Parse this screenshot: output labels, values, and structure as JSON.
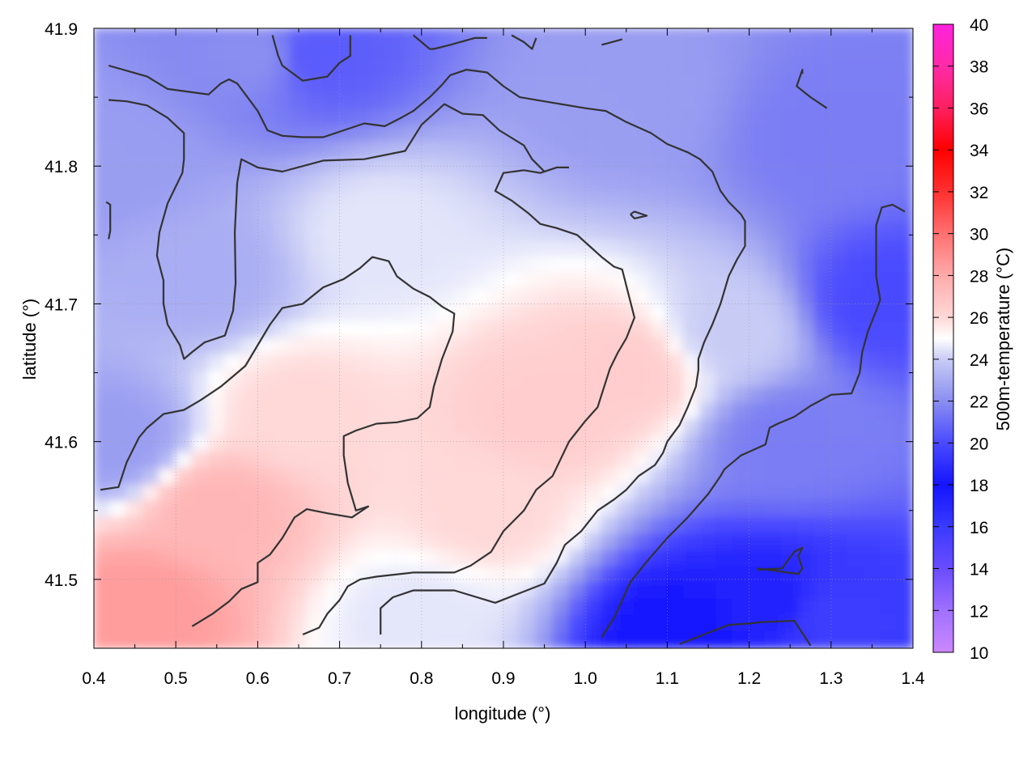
{
  "chart_data": {
    "type": "heatmap",
    "xlabel": "longitude (°)",
    "ylabel": "latitude (°)",
    "colorbar_label": "500m-temperature (°C)",
    "xlim": [
      0.4,
      1.4
    ],
    "ylim": [
      41.45,
      41.9
    ],
    "x_ticks": [
      "0.4",
      "0.5",
      "0.6",
      "0.7",
      "0.8",
      "0.9",
      "1.0",
      "1.1",
      "1.2",
      "1.3",
      "1.4"
    ],
    "y_ticks": [
      "41.5",
      "41.6",
      "41.7",
      "41.8",
      "41.9"
    ],
    "colorbar_range": [
      10,
      40
    ],
    "colorbar_ticks": [
      "10",
      "12",
      "14",
      "16",
      "18",
      "20",
      "22",
      "24",
      "26",
      "28",
      "30",
      "32",
      "34",
      "36",
      "38",
      "40"
    ],
    "colormap": [
      {
        "value": 10,
        "color": "#cc88ff"
      },
      {
        "value": 12,
        "color": "#a070ff"
      },
      {
        "value": 14,
        "color": "#6a4cff"
      },
      {
        "value": 16,
        "color": "#3a3aff"
      },
      {
        "value": 18,
        "color": "#1414ff"
      },
      {
        "value": 20,
        "color": "#4a4aff"
      },
      {
        "value": 22,
        "color": "#8a8ef0"
      },
      {
        "value": 24,
        "color": "#c8ccf5"
      },
      {
        "value": 25,
        "color": "#ffffff"
      },
      {
        "value": 26,
        "color": "#ffd8d8"
      },
      {
        "value": 28,
        "color": "#ffaaaa"
      },
      {
        "value": 30,
        "color": "#ff7070"
      },
      {
        "value": 32,
        "color": "#ff3030"
      },
      {
        "value": 34,
        "color": "#ff0000"
      },
      {
        "value": 36,
        "color": "#ff2060"
      },
      {
        "value": 38,
        "color": "#ff2aa8"
      },
      {
        "value": 40,
        "color": "#ff22dd"
      }
    ],
    "grid": true,
    "field_samples": [
      {
        "lon": 0.46,
        "lat": 41.48,
        "temp": 28.5
      },
      {
        "lon": 0.55,
        "lat": 41.55,
        "temp": 27.5
      },
      {
        "lon": 0.65,
        "lat": 41.62,
        "temp": 26.0
      },
      {
        "lon": 0.95,
        "lat": 41.62,
        "temp": 26.5
      },
      {
        "lon": 1.05,
        "lat": 41.65,
        "temp": 26.5
      },
      {
        "lon": 0.88,
        "lat": 41.55,
        "temp": 26.0
      },
      {
        "lon": 0.75,
        "lat": 41.75,
        "temp": 24.5
      },
      {
        "lon": 0.42,
        "lat": 41.8,
        "temp": 22.5
      },
      {
        "lon": 0.43,
        "lat": 41.6,
        "temp": 22.5
      },
      {
        "lon": 0.6,
        "lat": 41.88,
        "temp": 22.0
      },
      {
        "lon": 0.67,
        "lat": 41.88,
        "temp": 20.5
      },
      {
        "lon": 1.05,
        "lat": 41.85,
        "temp": 22.5
      },
      {
        "lon": 1.3,
        "lat": 41.82,
        "temp": 21.5
      },
      {
        "lon": 1.36,
        "lat": 41.7,
        "temp": 20.0
      },
      {
        "lon": 1.25,
        "lat": 41.6,
        "temp": 21.5
      },
      {
        "lon": 1.22,
        "lat": 41.48,
        "temp": 18.5
      },
      {
        "lon": 1.12,
        "lat": 41.46,
        "temp": 18.0
      },
      {
        "lon": 1.3,
        "lat": 41.47,
        "temp": 19.5
      },
      {
        "lon": 1.18,
        "lat": 41.68,
        "temp": 24.0
      },
      {
        "lon": 0.53,
        "lat": 41.72,
        "temp": 23.0
      },
      {
        "lon": 0.8,
        "lat": 41.47,
        "temp": 24.5
      }
    ],
    "contours": [
      [
        [
          0.418,
          41.873
        ],
        [
          0.465,
          41.865
        ],
        [
          0.49,
          41.856
        ],
        [
          0.54,
          41.852
        ],
        [
          0.555,
          41.86
        ],
        [
          0.565,
          41.863
        ],
        [
          0.575,
          41.86
        ],
        [
          0.6,
          41.84
        ],
        [
          0.612,
          41.826
        ],
        [
          0.63,
          41.822
        ],
        [
          0.655,
          41.821
        ],
        [
          0.68,
          41.821
        ],
        [
          0.705,
          41.826
        ],
        [
          0.73,
          41.831
        ],
        [
          0.755,
          41.829
        ],
        [
          0.775,
          41.835
        ],
        [
          0.79,
          41.84
        ],
        [
          0.81,
          41.85
        ],
        [
          0.825,
          41.859
        ],
        [
          0.835,
          41.866
        ],
        [
          0.855,
          41.87
        ],
        [
          0.88,
          41.868
        ],
        [
          0.9,
          41.858
        ],
        [
          0.92,
          41.85
        ],
        [
          0.96,
          41.846
        ],
        [
          1.0,
          41.842
        ],
        [
          1.025,
          41.84
        ],
        [
          1.05,
          41.832
        ],
        [
          1.08,
          41.824
        ],
        [
          1.1,
          41.816
        ],
        [
          1.125,
          41.81
        ],
        [
          1.14,
          41.805
        ],
        [
          1.155,
          41.796
        ],
        [
          1.165,
          41.782
        ],
        [
          1.175,
          41.774
        ],
        [
          1.19,
          41.765
        ],
        [
          1.195,
          41.76
        ],
        [
          1.195,
          41.742
        ],
        [
          1.185,
          41.732
        ],
        [
          1.175,
          41.72
        ],
        [
          1.165,
          41.7
        ],
        [
          1.155,
          41.685
        ],
        [
          1.145,
          41.672
        ],
        [
          1.138,
          41.66
        ],
        [
          1.138,
          41.652
        ],
        [
          1.135,
          41.64
        ],
        [
          1.125,
          41.625
        ],
        [
          1.115,
          41.612
        ],
        [
          1.1,
          41.6
        ],
        [
          1.095,
          41.592
        ],
        [
          1.085,
          41.583
        ],
        [
          1.065,
          41.575
        ],
        [
          1.05,
          41.565
        ],
        [
          1.035,
          41.558
        ],
        [
          1.015,
          41.55
        ],
        [
          0.995,
          41.535
        ],
        [
          0.975,
          41.525
        ],
        [
          0.965,
          41.512
        ],
        [
          0.95,
          41.497
        ],
        [
          0.92,
          41.49
        ],
        [
          0.89,
          41.483
        ],
        [
          0.84,
          41.492
        ],
        [
          0.79,
          41.492
        ],
        [
          0.765,
          41.487
        ],
        [
          0.75,
          41.479
        ],
        [
          0.75,
          41.46
        ]
      ],
      [
        [
          0.418,
          41.848
        ],
        [
          0.44,
          41.847
        ],
        [
          0.465,
          41.844
        ],
        [
          0.49,
          41.835
        ],
        [
          0.51,
          41.824
        ],
        [
          0.51,
          41.805
        ],
        [
          0.508,
          41.795
        ],
        [
          0.49,
          41.773
        ],
        [
          0.48,
          41.752
        ],
        [
          0.477,
          41.735
        ],
        [
          0.485,
          41.717
        ],
        [
          0.485,
          41.7
        ],
        [
          0.49,
          41.685
        ],
        [
          0.495,
          41.68
        ],
        [
          0.505,
          41.67
        ],
        [
          0.51,
          41.66
        ],
        [
          0.52,
          41.665
        ],
        [
          0.535,
          41.672
        ],
        [
          0.56,
          41.677
        ],
        [
          0.57,
          41.695
        ],
        [
          0.573,
          41.715
        ],
        [
          0.572,
          41.752
        ],
        [
          0.575,
          41.788
        ],
        [
          0.58,
          41.805
        ],
        [
          0.6,
          41.799
        ],
        [
          0.63,
          41.796
        ],
        [
          0.68,
          41.804
        ],
        [
          0.73,
          41.805
        ],
        [
          0.78,
          41.811
        ],
        [
          0.8,
          41.83
        ],
        [
          0.828,
          41.845
        ],
        [
          0.85,
          41.838
        ],
        [
          0.875,
          41.837
        ],
        [
          0.895,
          41.826
        ],
        [
          0.925,
          41.815
        ],
        [
          0.935,
          41.805
        ],
        [
          0.95,
          41.796
        ],
        [
          0.965,
          41.799
        ],
        [
          0.945,
          41.795
        ],
        [
          0.925,
          41.797
        ],
        [
          0.9,
          41.795
        ],
        [
          0.89,
          41.782
        ],
        [
          0.91,
          41.775
        ],
        [
          0.93,
          41.766
        ],
        [
          0.945,
          41.758
        ],
        [
          0.965,
          41.755
        ],
        [
          0.99,
          41.75
        ],
        [
          1.005,
          41.742
        ],
        [
          1.02,
          41.734
        ],
        [
          1.035,
          41.727
        ],
        [
          1.045,
          41.725
        ],
        [
          1.06,
          41.69
        ],
        [
          1.05,
          41.675
        ],
        [
          1.04,
          41.665
        ],
        [
          1.03,
          41.653
        ],
        [
          1.023,
          41.64
        ],
        [
          1.015,
          41.625
        ],
        [
          1.0,
          41.615
        ],
        [
          0.98,
          41.6
        ],
        [
          0.96,
          41.575
        ],
        [
          0.94,
          41.565
        ],
        [
          0.925,
          41.55
        ],
        [
          0.9,
          41.535
        ],
        [
          0.885,
          41.52
        ],
        [
          0.86,
          41.51
        ],
        [
          0.84,
          41.505
        ],
        [
          0.79,
          41.505
        ],
        [
          0.745,
          41.502
        ],
        [
          0.725,
          41.5
        ],
        [
          0.71,
          41.495
        ],
        [
          0.7,
          41.485
        ],
        [
          0.685,
          41.475
        ],
        [
          0.675,
          41.465
        ],
        [
          0.655,
          41.46
        ]
      ],
      [
        [
          0.408,
          41.565
        ],
        [
          0.43,
          41.567
        ],
        [
          0.44,
          41.585
        ],
        [
          0.455,
          41.603
        ],
        [
          0.465,
          41.61
        ],
        [
          0.485,
          41.62
        ],
        [
          0.51,
          41.623
        ],
        [
          0.53,
          41.63
        ],
        [
          0.555,
          41.64
        ],
        [
          0.575,
          41.65
        ],
        [
          0.585,
          41.655
        ],
        [
          0.6,
          41.67
        ],
        [
          0.615,
          41.685
        ],
        [
          0.63,
          41.697
        ],
        [
          0.655,
          41.7
        ],
        [
          0.68,
          41.712
        ],
        [
          0.705,
          41.718
        ],
        [
          0.725,
          41.726
        ],
        [
          0.74,
          41.734
        ],
        [
          0.76,
          41.731
        ],
        [
          0.77,
          41.72
        ],
        [
          0.79,
          41.711
        ],
        [
          0.81,
          41.705
        ],
        [
          0.825,
          41.698
        ],
        [
          0.84,
          41.693
        ],
        [
          0.838,
          41.68
        ],
        [
          0.825,
          41.66
        ],
        [
          0.815,
          41.64
        ],
        [
          0.81,
          41.625
        ],
        [
          0.795,
          41.617
        ],
        [
          0.77,
          41.614
        ],
        [
          0.745,
          41.613
        ],
        [
          0.72,
          41.608
        ],
        [
          0.705,
          41.604
        ],
        [
          0.705,
          41.59
        ],
        [
          0.71,
          41.57
        ],
        [
          0.72,
          41.55
        ],
        [
          0.735,
          41.553
        ],
        [
          0.715,
          41.545
        ],
        [
          0.685,
          41.548
        ],
        [
          0.66,
          41.551
        ],
        [
          0.645,
          41.545
        ],
        [
          0.63,
          41.53
        ],
        [
          0.615,
          41.518
        ],
        [
          0.6,
          41.512
        ],
        [
          0.6,
          41.498
        ],
        [
          0.58,
          41.493
        ],
        [
          0.565,
          41.484
        ],
        [
          0.545,
          41.475
        ],
        [
          0.52,
          41.466
        ]
      ],
      [
        [
          0.98,
          41.799
        ],
        [
          0.965,
          41.799
        ]
      ],
      [
        [
          1.055,
          41.765
        ],
        [
          1.06,
          41.762
        ],
        [
          1.075,
          41.764
        ],
        [
          1.06,
          41.767
        ],
        [
          1.055,
          41.765
        ]
      ],
      [
        [
          1.02,
          41.458
        ],
        [
          1.035,
          41.472
        ],
        [
          1.055,
          41.498
        ],
        [
          1.075,
          41.513
        ],
        [
          1.1,
          41.53
        ],
        [
          1.125,
          41.545
        ],
        [
          1.15,
          41.562
        ],
        [
          1.165,
          41.575
        ],
        [
          1.17,
          41.58
        ],
        [
          1.19,
          41.59
        ],
        [
          1.22,
          41.598
        ],
        [
          1.225,
          41.61
        ],
        [
          1.235,
          41.613
        ],
        [
          1.255,
          41.618
        ],
        [
          1.275,
          41.626
        ],
        [
          1.3,
          41.634
        ],
        [
          1.325,
          41.635
        ],
        [
          1.335,
          41.65
        ],
        [
          1.338,
          41.665
        ],
        [
          1.345,
          41.68
        ],
        [
          1.355,
          41.695
        ],
        [
          1.36,
          41.703
        ],
        [
          1.355,
          41.72
        ],
        [
          1.355,
          41.757
        ],
        [
          1.362,
          41.77
        ],
        [
          1.375,
          41.772
        ],
        [
          1.39,
          41.767
        ]
      ],
      [
        [
          1.265,
          41.867
        ],
        [
          1.265,
          41.87
        ],
        [
          1.258,
          41.858
        ],
        [
          1.275,
          41.85
        ],
        [
          1.295,
          41.842
        ]
      ],
      [
        [
          0.618,
          41.895
        ],
        [
          0.625,
          41.88
        ],
        [
          0.63,
          41.873
        ],
        [
          0.655,
          41.862
        ],
        [
          0.685,
          41.865
        ],
        [
          0.7,
          41.875
        ],
        [
          0.713,
          41.88
        ],
        [
          0.713,
          41.895
        ]
      ],
      [
        [
          0.79,
          41.895
        ],
        [
          0.81,
          41.885
        ],
        [
          0.815,
          41.885
        ],
        [
          0.835,
          41.888
        ],
        [
          0.865,
          41.893
        ],
        [
          0.88,
          41.893
        ]
      ],
      [
        [
          0.91,
          41.895
        ],
        [
          0.925,
          41.89
        ],
        [
          0.935,
          41.885
        ],
        [
          0.94,
          41.893
        ]
      ],
      [
        [
          1.02,
          41.888
        ],
        [
          1.045,
          41.892
        ]
      ],
      [
        [
          1.21,
          41.507
        ],
        [
          1.24,
          41.508
        ],
        [
          1.255,
          41.52
        ],
        [
          1.265,
          41.523
        ],
        [
          1.26,
          41.517
        ],
        [
          1.265,
          41.508
        ],
        [
          1.26,
          41.504
        ],
        [
          1.21,
          41.508
        ]
      ],
      [
        [
          1.115,
          41.453
        ],
        [
          1.145,
          41.46
        ],
        [
          1.175,
          41.467
        ],
        [
          1.2,
          41.468
        ],
        [
          1.215,
          41.469
        ],
        [
          1.255,
          41.47
        ],
        [
          1.275,
          41.452
        ]
      ],
      [
        [
          0.418,
          41.747
        ],
        [
          0.42,
          41.753
        ],
        [
          0.42,
          41.772
        ],
        [
          0.415,
          41.774
        ]
      ]
    ]
  }
}
